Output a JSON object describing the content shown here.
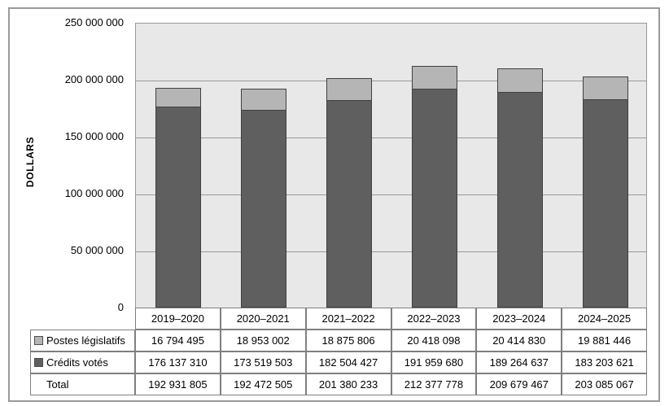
{
  "chart_data": {
    "type": "bar",
    "subtype": "stacked-vertical",
    "title": "",
    "xlabel": "",
    "ylabel": "DOLLARS",
    "ylim": [
      0,
      250000000
    ],
    "ytick_interval": 50000000,
    "ytick_labels": [
      "0",
      "50 000 000",
      "100 000 000",
      "150 000 000",
      "200 000 000",
      "250 000 000"
    ],
    "grid": "horizontal",
    "legend_position": "in-data-table",
    "plot_bg_color": "#e8e8e8",
    "gridline_color": "#999999",
    "bar_border_color": "#404040",
    "categories": [
      "2019–2020",
      "2020–2021",
      "2021–2022",
      "2022–2023",
      "2023–2024",
      "2024–2025"
    ],
    "series": [
      {
        "name": "Postes législatifs",
        "color": "#b5b5b5",
        "values": [
          16794495,
          18953002,
          18875806,
          20418098,
          20414830,
          19881446
        ]
      },
      {
        "name": "Crédits votés",
        "color": "#5f5f5f",
        "values": [
          176137310,
          173519503,
          182504427,
          191959680,
          189264637,
          183203621
        ]
      }
    ],
    "stack_order_bottom_to_top": [
      "Crédits votés",
      "Postes législatifs"
    ],
    "totals": [
      192931805,
      192472505,
      201380233,
      212377778,
      209679467,
      203085067
    ]
  },
  "table": {
    "row_labels": [
      "Postes législatifs",
      "Crédits votés",
      "Total"
    ],
    "rows": [
      [
        "16 794 495",
        "18 953 002",
        "18 875 806",
        "20 418 098",
        "20 414 830",
        "19 881 446"
      ],
      [
        "176 137 310",
        "173 519 503",
        "182 504 427",
        "191 959 680",
        "189 264 637",
        "183 203 621"
      ],
      [
        "192 931 805",
        "192 472 505",
        "201 380 233",
        "212 377 778",
        "209 679 467",
        "203 085 067"
      ]
    ]
  }
}
